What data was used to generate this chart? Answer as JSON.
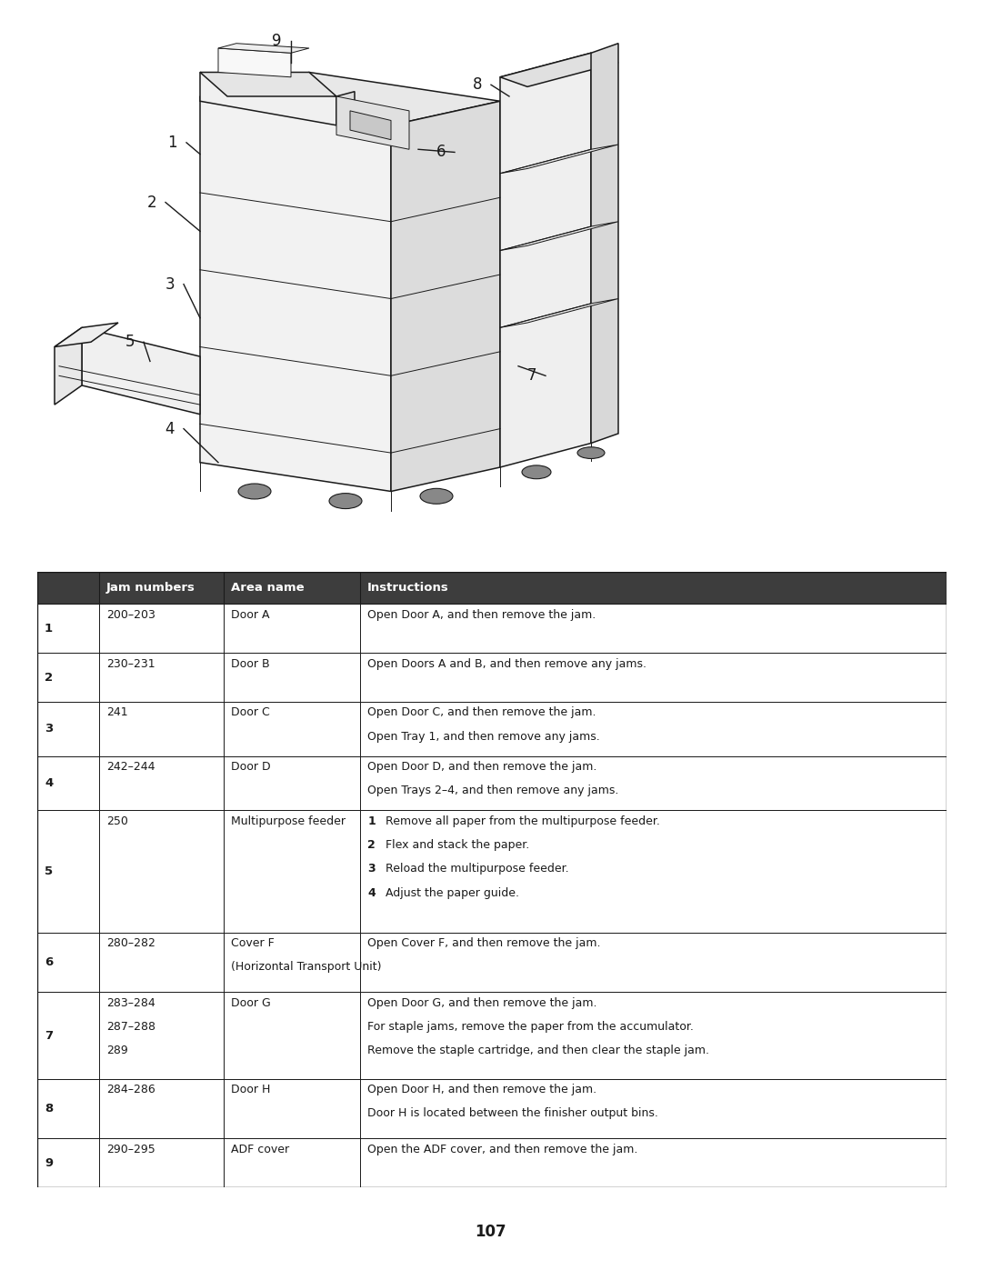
{
  "page_number": "107",
  "bg_color": "#ffffff",
  "header_color": "#3d3d3d",
  "header_text_color": "#ffffff",
  "rows": [
    {
      "num": "1",
      "jam": "200–203",
      "area": "Door A",
      "instructions": [
        "Open Door A, and then remove the jam."
      ]
    },
    {
      "num": "2",
      "jam": "230–231",
      "area": "Door B",
      "instructions": [
        "Open Doors A and B, and then remove any jams."
      ]
    },
    {
      "num": "3",
      "jam": "241",
      "area": "Door C",
      "instructions": [
        "Open Door C, and then remove the jam.",
        "Open Tray 1, and then remove any jams."
      ]
    },
    {
      "num": "4",
      "jam": "242–244",
      "area": "Door D",
      "instructions": [
        "Open Door D, and then remove the jam.",
        "Open Trays 2–4, and then remove any jams."
      ]
    },
    {
      "num": "5",
      "jam": "250",
      "area": "Multipurpose feeder",
      "instructions": [
        "\\b1\\b  Remove all paper from the multipurpose feeder.",
        "\\b2\\b  Flex and stack the paper.",
        "\\b3\\b  Reload the multipurpose feeder.",
        "\\b4\\b  Adjust the paper guide."
      ]
    },
    {
      "num": "6",
      "jam": "280–282",
      "area": "Cover F\n(Horizontal Transport Unit)",
      "instructions": [
        "Open Cover F, and then remove the jam."
      ]
    },
    {
      "num": "7",
      "jam": "283–284\n287–288\n289",
      "area": "Door G",
      "instructions": [
        "Open Door G, and then remove the jam.",
        "For staple jams, remove the paper from the accumulator.",
        "Remove the staple cartridge, and then clear the staple jam."
      ]
    },
    {
      "num": "8",
      "jam": "284–286",
      "area": "Door H",
      "instructions": [
        "Open Door H, and then remove the jam.",
        "Door H is located between the finisher output bins."
      ]
    },
    {
      "num": "9",
      "jam": "290–295",
      "area": "ADF cover",
      "instructions": [
        "Open the ADF cover, and then remove the jam."
      ]
    }
  ]
}
